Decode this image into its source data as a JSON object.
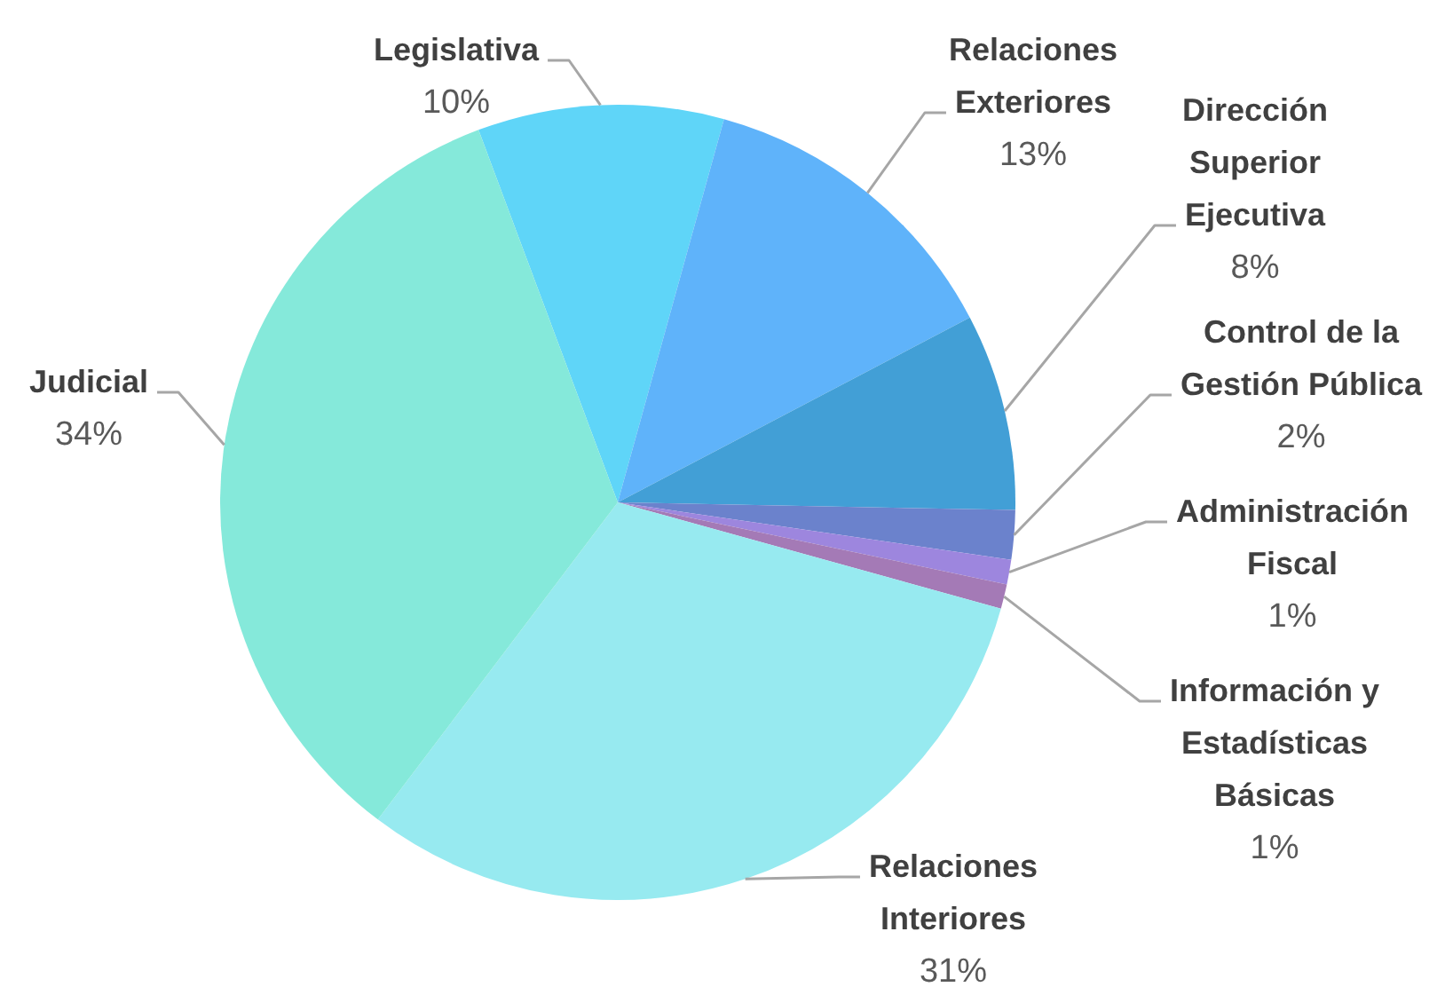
{
  "chart_data": {
    "type": "pie",
    "categories": [
      "Legislativa",
      "Relaciones Exteriores",
      "Dirección Superior Ejecutiva",
      "Control de la Gestión Pública",
      "Administración Fiscal",
      "Información y Estadísticas Básicas",
      "Relaciones Interiores",
      "Judicial"
    ],
    "values": [
      10,
      13,
      8,
      2,
      1,
      1,
      31,
      34
    ],
    "value_labels": [
      "10%",
      "13%",
      "8%",
      "2%",
      "1%",
      "1%",
      "31%",
      "34%"
    ],
    "colors": [
      "#5fd5f8",
      "#5fb3fa",
      "#429fd6",
      "#6b82cc",
      "#9d86de",
      "#a47ab6",
      "#97eaf0",
      "#85e9da"
    ]
  }
}
